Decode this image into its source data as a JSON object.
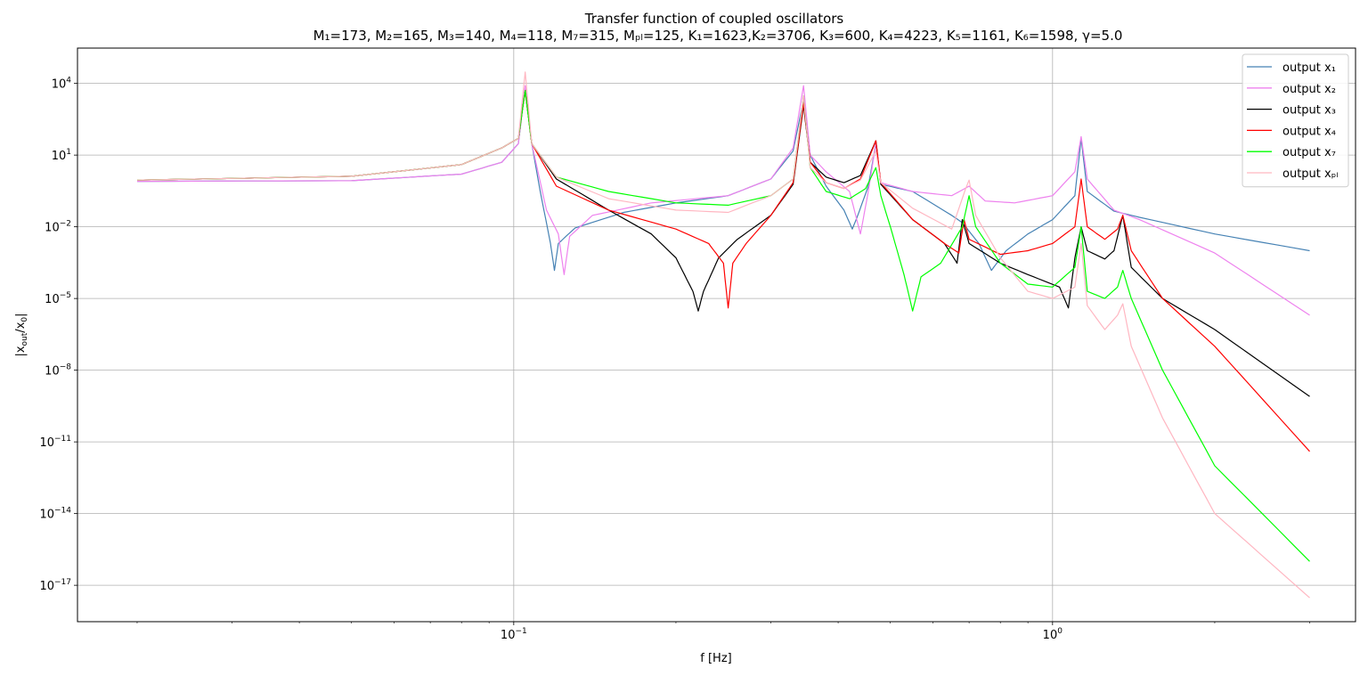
{
  "chart_data": {
    "type": "line",
    "title": "Transfer function of coupled oscillators",
    "subtitle": "M₁=173, M₂=165, M₃=140, M₄=118, M₇=315, Mₚₗ=125, K₁=1623,K₂=3706, K₃=600, K₄=4223, K₅=1161, K₆=1598, γ=5.0",
    "xlabel": "f [Hz]",
    "ylabel": "|x_out/x_0|",
    "xscale": "log",
    "yscale": "log",
    "xlim": [
      0.0155,
      3.65
    ],
    "ylim": [
      3e-19,
      300000.0
    ],
    "grid": true,
    "legend_position": "top-right",
    "x_ticks": [
      {
        "value": 0.1,
        "base": "10",
        "exp": "−1"
      },
      {
        "value": 1,
        "base": "10",
        "exp": "0"
      }
    ],
    "y_ticks": [
      {
        "value": 10000.0,
        "base": "10",
        "exp": "4"
      },
      {
        "value": 10,
        "base": "10",
        "exp": "1"
      },
      {
        "value": 0.01,
        "base": "10",
        "exp": "−2"
      },
      {
        "value": 1e-05,
        "base": "10",
        "exp": "−5"
      },
      {
        "value": 1e-08,
        "base": "10",
        "exp": "−8"
      },
      {
        "value": 1e-11,
        "base": "10",
        "exp": "−11"
      },
      {
        "value": 1e-14,
        "base": "10",
        "exp": "−14"
      },
      {
        "value": 1e-17,
        "base": "10",
        "exp": "−17"
      }
    ],
    "series": [
      {
        "name": "output x₁",
        "color": "#4682b4",
        "points": [
          [
            0.02,
            0.8
          ],
          [
            0.05,
            0.85
          ],
          [
            0.08,
            1.6
          ],
          [
            0.095,
            5
          ],
          [
            0.102,
            30
          ],
          [
            0.105,
            7000
          ],
          [
            0.108,
            30
          ],
          [
            0.112,
            0.3
          ],
          [
            0.117,
            0.002
          ],
          [
            0.119,
            0.00015
          ],
          [
            0.121,
            0.002
          ],
          [
            0.13,
            0.009
          ],
          [
            0.16,
            0.04
          ],
          [
            0.2,
            0.1
          ],
          [
            0.25,
            0.2
          ],
          [
            0.3,
            1
          ],
          [
            0.33,
            15
          ],
          [
            0.345,
            2000
          ],
          [
            0.355,
            10
          ],
          [
            0.38,
            0.5
          ],
          [
            0.41,
            0.05
          ],
          [
            0.425,
            0.008
          ],
          [
            0.435,
            0.03
          ],
          [
            0.455,
            0.5
          ],
          [
            0.47,
            30
          ],
          [
            0.48,
            0.6
          ],
          [
            0.55,
            0.3
          ],
          [
            0.65,
            0.03
          ],
          [
            0.68,
            0.015
          ],
          [
            0.73,
            0.002
          ],
          [
            0.77,
            0.00015
          ],
          [
            0.82,
            0.001
          ],
          [
            0.9,
            0.005
          ],
          [
            1.0,
            0.02
          ],
          [
            1.1,
            0.2
          ],
          [
            1.13,
            50
          ],
          [
            1.16,
            0.3
          ],
          [
            1.3,
            0.045
          ],
          [
            1.45,
            0.025
          ],
          [
            2.0,
            0.005
          ],
          [
            3.0,
            0.001
          ]
        ]
      },
      {
        "name": "output x₂",
        "color": "#ee82ee",
        "points": [
          [
            0.02,
            0.8
          ],
          [
            0.05,
            0.85
          ],
          [
            0.08,
            1.6
          ],
          [
            0.095,
            5
          ],
          [
            0.102,
            30
          ],
          [
            0.105,
            8000
          ],
          [
            0.108,
            30
          ],
          [
            0.115,
            0.05
          ],
          [
            0.121,
            0.005
          ],
          [
            0.124,
            0.0001
          ],
          [
            0.127,
            0.004
          ],
          [
            0.14,
            0.03
          ],
          [
            0.18,
            0.1
          ],
          [
            0.25,
            0.2
          ],
          [
            0.3,
            1
          ],
          [
            0.33,
            20
          ],
          [
            0.345,
            8000
          ],
          [
            0.355,
            10
          ],
          [
            0.38,
            2
          ],
          [
            0.42,
            0.3
          ],
          [
            0.44,
            0.005
          ],
          [
            0.455,
            0.3
          ],
          [
            0.47,
            30
          ],
          [
            0.48,
            0.7
          ],
          [
            0.55,
            0.3
          ],
          [
            0.65,
            0.2
          ],
          [
            0.7,
            0.5
          ],
          [
            0.75,
            0.12
          ],
          [
            0.85,
            0.1
          ],
          [
            1.0,
            0.2
          ],
          [
            1.1,
            2
          ],
          [
            1.13,
            60
          ],
          [
            1.16,
            1
          ],
          [
            1.3,
            0.05
          ],
          [
            1.45,
            0.02
          ],
          [
            2.0,
            0.0008
          ],
          [
            3.0,
            2e-06
          ]
        ]
      },
      {
        "name": "output x₃",
        "color": "#000000",
        "points": [
          [
            0.02,
            0.9
          ],
          [
            0.05,
            1.3
          ],
          [
            0.08,
            4
          ],
          [
            0.095,
            20
          ],
          [
            0.102,
            50
          ],
          [
            0.105,
            5000
          ],
          [
            0.108,
            30
          ],
          [
            0.12,
            1
          ],
          [
            0.15,
            0.05
          ],
          [
            0.18,
            0.005
          ],
          [
            0.2,
            0.0005
          ],
          [
            0.215,
            2e-05
          ],
          [
            0.22,
            3e-06
          ],
          [
            0.225,
            2e-05
          ],
          [
            0.24,
            0.0005
          ],
          [
            0.26,
            0.003
          ],
          [
            0.3,
            0.03
          ],
          [
            0.33,
            0.6
          ],
          [
            0.345,
            1200
          ],
          [
            0.355,
            5
          ],
          [
            0.38,
            1.2
          ],
          [
            0.41,
            0.7
          ],
          [
            0.44,
            1.4
          ],
          [
            0.47,
            40
          ],
          [
            0.48,
            0.6
          ],
          [
            0.55,
            0.02
          ],
          [
            0.63,
            0.002
          ],
          [
            0.665,
            0.0003
          ],
          [
            0.68,
            0.02
          ],
          [
            0.7,
            0.002
          ],
          [
            0.8,
            0.0003
          ],
          [
            0.9,
            0.0001
          ],
          [
            1.03,
            3e-05
          ],
          [
            1.07,
            4e-06
          ],
          [
            1.1,
            0.0005
          ],
          [
            1.13,
            0.01
          ],
          [
            1.16,
            0.001
          ],
          [
            1.25,
            0.00045
          ],
          [
            1.3,
            0.001
          ],
          [
            1.35,
            0.03
          ],
          [
            1.4,
            0.0002
          ],
          [
            1.6,
            1e-05
          ],
          [
            2.0,
            5e-07
          ],
          [
            3.0,
            8e-10
          ]
        ]
      },
      {
        "name": "output x₄",
        "color": "#ff0000",
        "points": [
          [
            0.02,
            0.9
          ],
          [
            0.05,
            1.3
          ],
          [
            0.08,
            4
          ],
          [
            0.095,
            20
          ],
          [
            0.102,
            50
          ],
          [
            0.105,
            5000
          ],
          [
            0.108,
            30
          ],
          [
            0.12,
            0.5
          ],
          [
            0.15,
            0.05
          ],
          [
            0.2,
            0.008
          ],
          [
            0.23,
            0.002
          ],
          [
            0.245,
            0.0003
          ],
          [
            0.25,
            4e-06
          ],
          [
            0.255,
            0.0003
          ],
          [
            0.27,
            0.002
          ],
          [
            0.3,
            0.03
          ],
          [
            0.33,
            0.7
          ],
          [
            0.345,
            1500
          ],
          [
            0.355,
            5
          ],
          [
            0.38,
            0.7
          ],
          [
            0.41,
            0.4
          ],
          [
            0.44,
            1
          ],
          [
            0.47,
            40
          ],
          [
            0.48,
            0.7
          ],
          [
            0.55,
            0.02
          ],
          [
            0.63,
            0.002
          ],
          [
            0.67,
            0.0008
          ],
          [
            0.685,
            0.02
          ],
          [
            0.7,
            0.003
          ],
          [
            0.8,
            0.0007
          ],
          [
            0.9,
            0.001
          ],
          [
            1.0,
            0.002
          ],
          [
            1.1,
            0.01
          ],
          [
            1.13,
            1
          ],
          [
            1.16,
            0.01
          ],
          [
            1.25,
            0.003
          ],
          [
            1.32,
            0.008
          ],
          [
            1.35,
            0.03
          ],
          [
            1.4,
            0.001
          ],
          [
            1.6,
            1e-05
          ],
          [
            2.0,
            1e-07
          ],
          [
            3.0,
            4e-12
          ]
        ]
      },
      {
        "name": "output x₇",
        "color": "#00ff00",
        "points": [
          [
            0.02,
            0.9
          ],
          [
            0.05,
            1.3
          ],
          [
            0.08,
            4
          ],
          [
            0.095,
            20
          ],
          [
            0.102,
            50
          ],
          [
            0.105,
            5000
          ],
          [
            0.108,
            30
          ],
          [
            0.12,
            1.2
          ],
          [
            0.15,
            0.3
          ],
          [
            0.2,
            0.1
          ],
          [
            0.25,
            0.08
          ],
          [
            0.3,
            0.2
          ],
          [
            0.33,
            1
          ],
          [
            0.345,
            3000
          ],
          [
            0.355,
            3
          ],
          [
            0.38,
            0.3
          ],
          [
            0.42,
            0.15
          ],
          [
            0.45,
            0.4
          ],
          [
            0.47,
            3
          ],
          [
            0.48,
            0.2
          ],
          [
            0.5,
            0.01
          ],
          [
            0.53,
            0.0001
          ],
          [
            0.55,
            3e-06
          ],
          [
            0.57,
            8e-05
          ],
          [
            0.62,
            0.0003
          ],
          [
            0.68,
            0.01
          ],
          [
            0.7,
            0.2
          ],
          [
            0.72,
            0.01
          ],
          [
            0.8,
            0.0003
          ],
          [
            0.9,
            4e-05
          ],
          [
            1.0,
            3e-05
          ],
          [
            1.1,
            0.0002
          ],
          [
            1.13,
            0.01
          ],
          [
            1.16,
            2e-05
          ],
          [
            1.25,
            1e-05
          ],
          [
            1.32,
            3e-05
          ],
          [
            1.35,
            0.00015
          ],
          [
            1.4,
            1e-05
          ],
          [
            1.6,
            1e-08
          ],
          [
            2.0,
            1e-12
          ],
          [
            3.0,
            1e-16
          ]
        ]
      },
      {
        "name": "output xₚₗ",
        "color": "#ffb6c1",
        "points": [
          [
            0.02,
            0.9
          ],
          [
            0.05,
            1.3
          ],
          [
            0.08,
            4
          ],
          [
            0.095,
            20
          ],
          [
            0.102,
            50
          ],
          [
            0.105,
            30000
          ],
          [
            0.108,
            30
          ],
          [
            0.12,
            1.2
          ],
          [
            0.15,
            0.15
          ],
          [
            0.2,
            0.05
          ],
          [
            0.25,
            0.04
          ],
          [
            0.3,
            0.2
          ],
          [
            0.33,
            1
          ],
          [
            0.345,
            3000
          ],
          [
            0.355,
            3
          ],
          [
            0.38,
            0.7
          ],
          [
            0.41,
            0.4
          ],
          [
            0.44,
            0.9
          ],
          [
            0.47,
            15
          ],
          [
            0.48,
            0.7
          ],
          [
            0.55,
            0.06
          ],
          [
            0.65,
            0.008
          ],
          [
            0.69,
            0.4
          ],
          [
            0.7,
            0.9
          ],
          [
            0.72,
            0.03
          ],
          [
            0.8,
            0.0005
          ],
          [
            0.9,
            2e-05
          ],
          [
            1.0,
            1e-05
          ],
          [
            1.1,
            3e-05
          ],
          [
            1.13,
            0.002
          ],
          [
            1.16,
            5e-06
          ],
          [
            1.25,
            5e-07
          ],
          [
            1.32,
            2e-06
          ],
          [
            1.35,
            6e-06
          ],
          [
            1.4,
            1e-07
          ],
          [
            1.6,
            1e-10
          ],
          [
            2.0,
            1e-14
          ],
          [
            3.0,
            3e-18
          ]
        ]
      }
    ]
  }
}
